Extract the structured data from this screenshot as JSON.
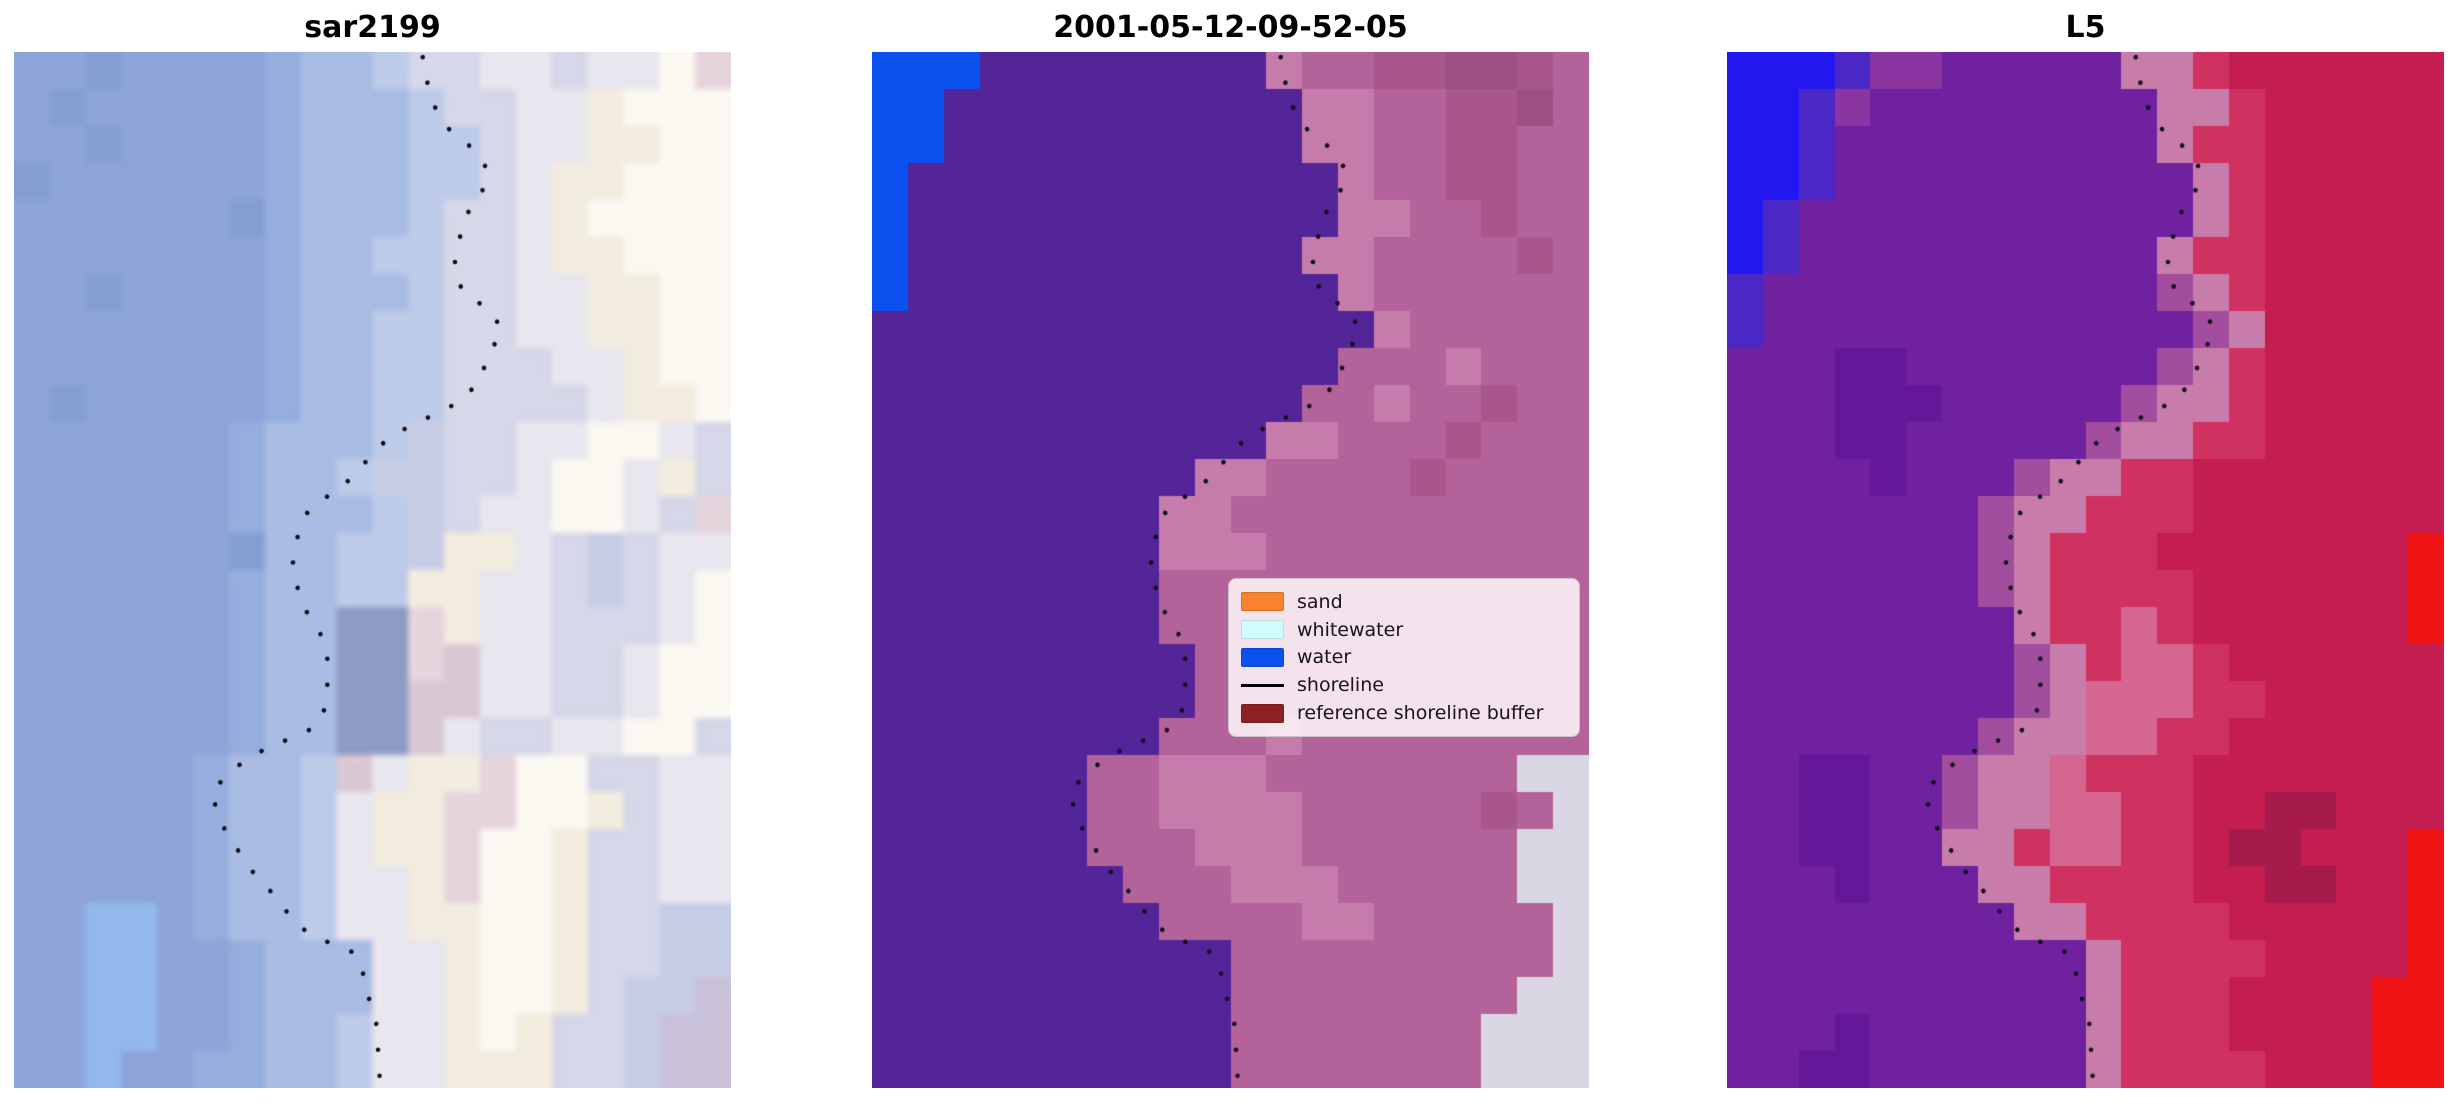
{
  "figure": {
    "background": "#ffffff"
  },
  "chart_data": {
    "type": "heatmap",
    "layout": "1x3 image subplots, matplotlib-style, no axes ticks",
    "subplots": [
      {
        "title": "sar2199",
        "render": "smooth",
        "grid": {
          "cols": 20,
          "rows": 28,
          "palette": {
            "a": "#8ca4d8",
            "b": "#96aedd",
            "c": "#859ed2",
            "d": "#a9bce3",
            "e": "#bdcbe9",
            "f": "#d6d7e8",
            "g": "#e8e6ee",
            "h": "#f2ecdf",
            "i": "#faf8f1",
            "j": "#e6d4dc",
            "k": "#c7cde5",
            "n": "#93b8ec",
            "o": "#d9c8d4",
            "p": "#c9c1d9",
            "q": "#8f9cc5"
          },
          "cells": [
            "aacaaaabddeffggfggij",
            "acaaaaabdddeffgghiii",
            "aacaaaabdddeefgghhii",
            "caaaaaabdddeefghhiii",
            "aaaaaacbdddeffghiiii",
            "aaaaaaabddeeffghhiii",
            "aacaaaabdddeffgghhii",
            "aaaaaaabddeeffgghhii",
            "aaaaaaabddeefffgghii",
            "acaaaaabddeeffffghhi",
            "aaaaaabdddekffggiigf",
            "aaaaaabddekkffgiighf",
            "aaaaaabdddekfggiigfj",
            "aaaaaacddeekhhgfkfgg",
            "aaaaaabddeehhggfkfgi",
            "aaaaaabddqqjhggfffgi",
            "aaaaaabddqqjoggffgii",
            "aaaaaabddqqooggffgii",
            "aaaaaabddqqogffggiif",
            "aaaaabddeoghhjiiffgg",
            "aaaaabddeghhjjiihfgg",
            "aaaaabddeghhjiihffgg",
            "aaaaabddegghjiihffgg",
            "aannabddegghhiihffkk",
            "aannaabdddgghiihffkk",
            "aannaabdddgghiihfkkp",
            "aannaabddegghihffkpp",
            "aanaabbddegghhhffkpp"
          ]
        }
      },
      {
        "title": "2001-05-12-09-52-05",
        "render": "pixelated",
        "grid": {
          "cols": 20,
          "rows": 28,
          "palette": {
            "W": "#0a51ef",
            "P": "#542599",
            "r": "#a8568c",
            "s": "#b4639a",
            "t": "#c67cab",
            "u": "#9d4f84",
            "v": "#d9d6e4"
          },
          "cells": [
            "WWWPPPPPPPPtssrruurs",
            "WWPPPPPPPPPPttssrrus",
            "WWPPPPPPPPPPttssrrss",
            "WPPPPPPPPPPPPtssrrss",
            "WPPPPPPPPPPPPttssrss",
            "WPPPPPPPPPPPttssssrs",
            "WPPPPPPPPPPPPtssssss",
            "PPPPPPPPPPPPPPtsssss",
            "PPPPPPPPPPPPPssstsss",
            "PPPPPPPPPPPPsstssrss",
            "PPPPPPPPPPPttsssrsss",
            "PPPPPPPPPttssssrssss",
            "PPPPPPPPttssssssssss",
            "PPPPPPPPtttsssssssss",
            "PPPPPPPPssssssssssss",
            "PPPPPPPPssssssssssss",
            "PPPPPPPPPsssssssssss",
            "PPPPPPPPPsssssssssss",
            "PPPPPPPPssstssssssss",
            "PPPPPPsstttsssssssvv",
            "PPPPPPssttttsssssrsv",
            "PPPPPPssstttssssssvv",
            "PPPPPPPssstttsssssvv",
            "PPPPPPPPssssttsssssv",
            "PPPPPPPPPPsssssssssv",
            "PPPPPPPPPPssssssssvv",
            "PPPPPPPPPPsssssssvvv",
            "PPPPPPPPPPsssssssvvv"
          ]
        }
      },
      {
        "title": "L5",
        "render": "pixelated",
        "grid": {
          "cols": 20,
          "rows": 28,
          "palette": {
            "B": "#2217ee",
            "C": "#4b28c6",
            "D": "#6f21a0",
            "E": "#63189a",
            "F": "#8a35a0",
            "M": "#a24d9d",
            "G": "#c87ca9",
            "S": "#cf3260",
            "R": "#c41d50",
            "T": "#d4668f",
            "X": "#f01313",
            "Y": "#a61b4b"
          },
          "cells": [
            "BBBCFFDDDDDGGSRRRRRR",
            "BBCFDDDDDDDDGGSRRRRR",
            "BBCDDDDDDDDDGSSRRRRR",
            "BBCDDDDDDDDDDGSRRRRR",
            "BCDDDDDDDDDDDGSRRRRR",
            "BCDDDDDDDDDDGSSRRRRR",
            "CDDDDDDDDDDDMGSRRRRR",
            "CDDDDDDDDDDDDMGRRRRR",
            "DDDEEDDDDDDDMGSRRRRR",
            "DDDEEEDDDDDMGGSRRRRR",
            "DDDEEDDDDDMGGSSRRRRR",
            "DDDDEDDDMGGSSRRRRRRR",
            "DDDDDDDMGGSSSRRRRRRR",
            "DDDDDDDMGSSSRRRRRRRX",
            "DDDDDDDMGSSSSRRRRRRX",
            "DDDDDDDDGSSTSRRRRRRX",
            "DDDDDDDDMGSTTSRRRRRR",
            "DDDDDDDDMGTTTSSRRRRR",
            "DDDDDDDMGGTTSSRRRRRR",
            "DDEEDDMGGTSSSRRRRRRR",
            "DDEEDDMGGTTSSRRYYRRR",
            "DDEEDDGGSTTSSRYYRRRX",
            "DDDEDDDGGSSSSRRYYRRX",
            "DDDDDDDDGGSSSSRRRRRX",
            "DDDDDDDDDDGSSSSRRRRX",
            "DDDDDDDDDDGSSSRRRRXX",
            "DDDEDDDDDDGSSSRRRRXX",
            "DDEEDDDDDDGSSSSRRRXX"
          ]
        }
      }
    ],
    "shoreline": {
      "color": "#0c0c16",
      "dot_size": 4.6,
      "dot_spacing": 26,
      "points": [
        [
          57.0,
          0.5
        ],
        [
          57.5,
          2.6
        ],
        [
          58.2,
          4.2
        ],
        [
          59.1,
          6.1
        ],
        [
          61.1,
          7.8
        ],
        [
          64.0,
          9.3
        ],
        [
          66.0,
          11.3
        ],
        [
          65.7,
          13.0
        ],
        [
          63.7,
          14.9
        ],
        [
          62.8,
          16.4
        ],
        [
          62.1,
          18.1
        ],
        [
          61.5,
          20.0
        ],
        [
          61.5,
          21.6
        ],
        [
          62.9,
          23.4
        ],
        [
          66.2,
          24.8
        ],
        [
          68.1,
          26.8
        ],
        [
          66.8,
          28.5
        ],
        [
          65.9,
          29.8
        ],
        [
          64.8,
          32.0
        ],
        [
          61.5,
          34.0
        ],
        [
          57.1,
          35.5
        ],
        [
          52.7,
          37.0
        ],
        [
          49.7,
          38.9
        ],
        [
          48.7,
          39.9
        ],
        [
          47.7,
          40.6
        ],
        [
          46.3,
          41.6
        ],
        [
          44.9,
          42.4
        ],
        [
          43.9,
          42.8
        ],
        [
          41.1,
          44.2
        ],
        [
          40.0,
          45.8
        ],
        [
          39.2,
          47.6
        ],
        [
          38.9,
          49.2
        ],
        [
          39.1,
          51.0
        ],
        [
          40.2,
          52.7
        ],
        [
          41.0,
          54.4
        ],
        [
          42.7,
          56.1
        ],
        [
          43.7,
          57.9
        ],
        [
          43.7,
          59.7
        ],
        [
          43.7,
          61.4
        ],
        [
          43.5,
          63.1
        ],
        [
          42.4,
          64.9
        ],
        [
          41.3,
          65.4
        ],
        [
          38.9,
          66.1
        ],
        [
          37.7,
          66.5
        ],
        [
          36.1,
          66.8
        ],
        [
          31.0,
          69.0
        ],
        [
          27.6,
          71.3
        ],
        [
          28.5,
          74.0
        ],
        [
          30.8,
          76.6
        ],
        [
          33.0,
          78.9
        ],
        [
          36.3,
          81.4
        ],
        [
          39.6,
          84.4
        ],
        [
          44.0,
          86.0
        ],
        [
          47.6,
          87.0
        ],
        [
          48.7,
          89.0
        ],
        [
          49.2,
          90.7
        ],
        [
          50.0,
          92.4
        ],
        [
          50.6,
          94.0
        ],
        [
          50.7,
          95.7
        ],
        [
          50.9,
          97.4
        ],
        [
          51.0,
          99.2
        ]
      ]
    },
    "legend": {
      "items": [
        {
          "label": "sand",
          "swatch": "patch",
          "color": "#f9822c"
        },
        {
          "label": "whitewater",
          "swatch": "patch",
          "color": "#d2fdff"
        },
        {
          "label": "water",
          "swatch": "patch",
          "color": "#0a51ef"
        },
        {
          "label": "shoreline",
          "swatch": "line",
          "color": "#000000"
        },
        {
          "label": "reference shoreline buffer",
          "swatch": "patch",
          "color": "#8b2322"
        }
      ]
    }
  }
}
